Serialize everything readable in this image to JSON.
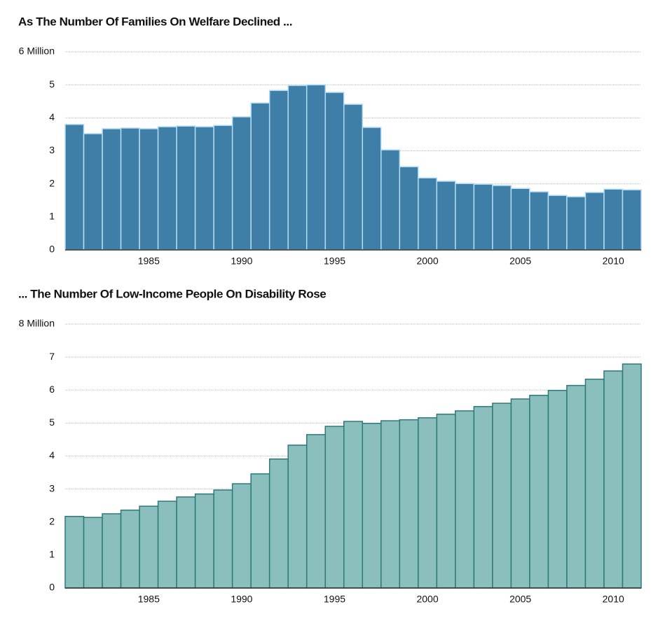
{
  "chart_data": [
    {
      "type": "bar",
      "title": "As The Number Of Families On Welfare Declined ...",
      "categories": [
        null,
        null,
        null,
        null,
        1985,
        null,
        null,
        null,
        null,
        1990,
        null,
        null,
        null,
        null,
        1995,
        null,
        null,
        null,
        null,
        2000,
        null,
        null,
        null,
        null,
        2005,
        null,
        null,
        null,
        null,
        2010,
        null
      ],
      "values": [
        3.8,
        3.52,
        3.67,
        3.69,
        3.67,
        3.73,
        3.75,
        3.73,
        3.77,
        4.03,
        4.45,
        4.83,
        4.98,
        5.0,
        4.77,
        4.41,
        3.71,
        3.03,
        2.52,
        2.18,
        2.08,
        2.01,
        1.99,
        1.95,
        1.86,
        1.76,
        1.65,
        1.61,
        1.74,
        1.84,
        1.82
      ],
      "color": "#3e7ea7",
      "edgecolor": "#b3dcf2",
      "ylim": [
        0,
        6
      ],
      "yticks": [
        0,
        1,
        2,
        3,
        4,
        5,
        {
          "value": 6,
          "label": "6 Million"
        }
      ],
      "grid": true
    },
    {
      "type": "bar",
      "title": "... The Number Of Low-Income People On Disability Rose",
      "categories": [
        null,
        null,
        null,
        null,
        1985,
        null,
        null,
        null,
        null,
        1990,
        null,
        null,
        null,
        null,
        1995,
        null,
        null,
        null,
        null,
        2000,
        null,
        null,
        null,
        null,
        2005,
        null,
        null,
        null,
        null,
        2010,
        null
      ],
      "values": [
        2.17,
        2.14,
        2.25,
        2.36,
        2.48,
        2.63,
        2.76,
        2.85,
        2.97,
        3.16,
        3.46,
        3.91,
        4.33,
        4.65,
        4.9,
        5.05,
        4.99,
        5.07,
        5.1,
        5.16,
        5.27,
        5.37,
        5.5,
        5.6,
        5.73,
        5.84,
        5.99,
        6.14,
        6.33,
        6.58,
        6.79
      ],
      "color": "#8bbfbd",
      "edgecolor": "#2d7a78",
      "ylim": [
        0,
        8
      ],
      "yticks": [
        0,
        1,
        2,
        3,
        4,
        5,
        6,
        7,
        {
          "value": 8,
          "label": "8 Million"
        }
      ],
      "grid": true
    }
  ]
}
